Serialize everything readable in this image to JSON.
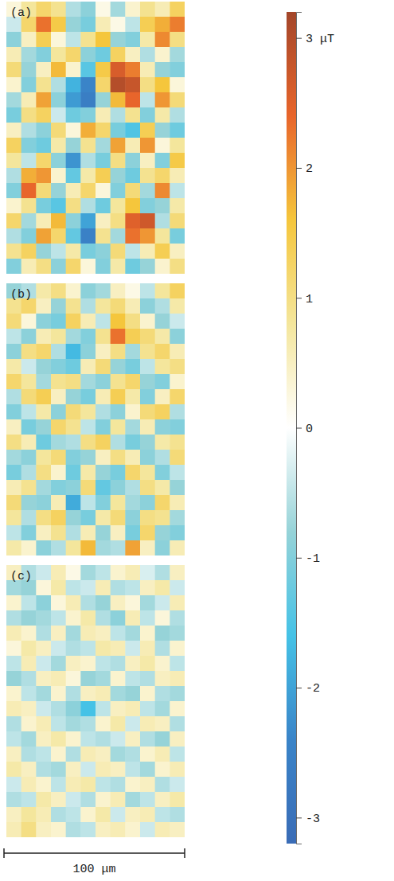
{
  "chart_data": {
    "type": "heatmap",
    "tick_labels": false,
    "panels": [
      {
        "label": "(a)",
        "cells": [
          [
            0.3,
            0.8,
            1.2,
            0.9,
            -0.6,
            -0.9,
            0.2,
            -0.7,
            0.4,
            0.9,
            0.6,
            1.3
          ],
          [
            -0.4,
            1.2,
            2.3,
            1.5,
            -0.8,
            -1.1,
            0.6,
            0.2,
            -0.5,
            1.4,
            1.8,
            2.2
          ],
          [
            -0.9,
            0.5,
            1.4,
            0.3,
            -0.5,
            0.9,
            1.6,
            -0.8,
            -1.0,
            0.7,
            2.1,
            1.0
          ],
          [
            0.6,
            -0.7,
            -1.0,
            0.8,
            1.2,
            -0.9,
            -1.2,
            1.3,
            0.5,
            -0.6,
            0.4,
            -0.7
          ],
          [
            1.1,
            -0.8,
            0.5,
            1.7,
            0.4,
            -1.4,
            1.5,
            2.6,
            2.2,
            0.6,
            -0.8,
            -1.0
          ],
          [
            0.4,
            -1.0,
            0.9,
            -0.6,
            -1.8,
            -2.4,
            1.2,
            3.0,
            2.8,
            1.0,
            1.6,
            0.3
          ],
          [
            -0.7,
            0.6,
            1.9,
            -0.9,
            -2.1,
            -2.6,
            -0.8,
            1.7,
            2.4,
            -0.5,
            2.0,
            1.1
          ],
          [
            -1.1,
            1.0,
            1.3,
            -0.4,
            -1.2,
            -1.0,
            0.6,
            -0.6,
            0.9,
            -1.0,
            0.7,
            -0.6
          ],
          [
            0.5,
            -0.6,
            -0.9,
            1.1,
            0.3,
            1.8,
            1.2,
            -1.1,
            -1.5,
            1.4,
            -0.8,
            -1.2
          ],
          [
            1.3,
            -1.0,
            -1.2,
            0.7,
            -0.8,
            0.9,
            -0.7,
            1.9,
            0.6,
            2.0,
            0.3,
            0.8
          ],
          [
            0.8,
            -0.5,
            1.2,
            -0.9,
            -2.2,
            -0.6,
            -1.1,
            1.0,
            -0.9,
            0.5,
            -1.0,
            1.5
          ],
          [
            -0.6,
            1.8,
            2.0,
            0.4,
            -1.3,
            0.7,
            1.4,
            -0.8,
            -1.2,
            0.9,
            1.2,
            0.6
          ],
          [
            -1.0,
            2.4,
            1.1,
            -0.8,
            0.6,
            1.2,
            0.3,
            -1.0,
            1.1,
            -0.7,
            2.1,
            -0.5
          ],
          [
            0.4,
            0.9,
            -1.1,
            -1.4,
            1.0,
            -0.6,
            -1.2,
            0.8,
            1.6,
            -1.0,
            -0.8,
            0.7
          ],
          [
            1.2,
            -0.7,
            0.6,
            1.7,
            -0.9,
            -2.0,
            0.5,
            1.0,
            2.5,
            2.7,
            -0.6,
            1.1
          ],
          [
            -0.6,
            -1.0,
            1.9,
            1.2,
            -1.3,
            -2.5,
            0.9,
            -0.7,
            2.3,
            2.0,
            0.8,
            -1.1
          ],
          [
            0.9,
            1.3,
            -0.8,
            -0.5,
            0.7,
            -1.1,
            -0.9,
            1.1,
            -0.5,
            0.6,
            1.4,
            0.5
          ],
          [
            -1.0,
            0.6,
            1.0,
            -0.9,
            1.2,
            0.3,
            -1.0,
            0.7,
            -1.2,
            -0.8,
            0.4,
            1.0
          ]
        ]
      },
      {
        "label": "(b)",
        "cells": [
          [
            -0.8,
            -0.6,
            0.7,
            1.0,
            0.4,
            -0.9,
            -0.7,
            0.5,
            0.2,
            -0.5,
            0.8,
            1.3
          ],
          [
            0.9,
            1.2,
            0.5,
            -0.8,
            0.9,
            -0.6,
            0.8,
            1.1,
            0.6,
            -0.9,
            -0.6,
            0.7
          ],
          [
            1.1,
            0.3,
            -0.9,
            -1.1,
            1.3,
            0.6,
            -0.5,
            1.6,
            1.0,
            0.4,
            -0.8,
            -0.4
          ],
          [
            -0.5,
            -0.9,
            0.6,
            0.8,
            -0.7,
            -1.0,
            0.9,
            2.3,
            1.4,
            1.1,
            0.7,
            -0.9
          ],
          [
            -0.9,
            1.0,
            1.2,
            -0.6,
            -1.7,
            -0.9,
            0.5,
            1.0,
            -0.7,
            0.9,
            1.2,
            0.6
          ],
          [
            0.7,
            -0.4,
            -0.8,
            -1.0,
            -1.2,
            0.6,
            1.1,
            -0.8,
            -1.1,
            -0.5,
            0.8,
            1.0
          ],
          [
            1.2,
            0.8,
            -0.7,
            0.9,
            1.0,
            -0.7,
            -0.9,
            0.9,
            1.2,
            -0.8,
            -1.0,
            0.4
          ],
          [
            -0.6,
            1.1,
            1.4,
            0.5,
            -0.8,
            -1.1,
            0.6,
            1.4,
            0.7,
            -1.0,
            0.5,
            1.2
          ],
          [
            -1.0,
            -0.5,
            0.7,
            -0.9,
            1.1,
            0.8,
            -0.6,
            -0.9,
            0.4,
            1.1,
            1.3,
            -0.6
          ],
          [
            0.5,
            -1.1,
            -0.8,
            1.2,
            0.9,
            -0.5,
            -1.0,
            0.8,
            -0.7,
            0.6,
            -0.9,
            -1.0
          ],
          [
            1.0,
            0.6,
            -1.2,
            -0.7,
            -0.6,
            1.0,
            1.3,
            -0.6,
            -1.1,
            -0.8,
            0.7,
            0.9
          ],
          [
            -0.7,
            -0.9,
            0.8,
            1.1,
            -1.0,
            -0.8,
            0.5,
            1.0,
            0.6,
            -0.9,
            -0.6,
            1.1
          ],
          [
            -1.1,
            -0.6,
            1.0,
            0.4,
            -1.2,
            0.7,
            -0.8,
            -1.1,
            1.2,
            0.8,
            -1.0,
            -0.5
          ],
          [
            0.6,
            0.9,
            -0.7,
            -1.0,
            -0.9,
            1.1,
            -1.3,
            -0.9,
            -0.6,
            1.0,
            0.7,
            -0.8
          ],
          [
            1.1,
            -0.8,
            -0.9,
            0.6,
            -1.9,
            -0.5,
            -1.0,
            0.8,
            -0.7,
            -0.9,
            1.2,
            0.6
          ],
          [
            0.8,
            -0.6,
            1.0,
            1.3,
            -0.8,
            -1.1,
            0.7,
            1.1,
            -0.9,
            1.0,
            0.9,
            -0.7
          ],
          [
            -0.5,
            -1.0,
            0.5,
            0.9,
            -0.6,
            0.6,
            -0.8,
            0.5,
            -1.1,
            1.2,
            -0.8,
            -1.0
          ],
          [
            0.7,
            0.4,
            -0.9,
            -0.6,
            0.8,
            1.7,
            -0.7,
            -0.6,
            1.9,
            0.5,
            -0.9,
            0.6
          ]
        ]
      },
      {
        "label": "(c)",
        "cells": [
          [
            0.5,
            -0.6,
            -0.4,
            0.6,
            0.2,
            -0.7,
            -0.5,
            0.4,
            0.6,
            -0.3,
            -0.6,
            0.5
          ],
          [
            -0.7,
            -0.8,
            0.3,
            0.7,
            -0.5,
            -0.4,
            0.6,
            -0.6,
            -0.5,
            0.5,
            0.7,
            -0.4
          ],
          [
            0.4,
            -0.5,
            -0.9,
            0.3,
            0.6,
            -0.6,
            -0.8,
            0.5,
            0.3,
            -0.7,
            -0.4,
            0.6
          ],
          [
            -0.6,
            -0.8,
            -0.7,
            -0.5,
            0.4,
            0.7,
            -0.6,
            -0.9,
            0.6,
            -0.5,
            0.3,
            -0.6
          ],
          [
            0.6,
            0.4,
            -0.6,
            0.5,
            -0.7,
            0.6,
            0.5,
            -0.5,
            -0.7,
            0.4,
            -0.8,
            -0.7
          ],
          [
            0.3,
            0.7,
            0.5,
            -0.4,
            -0.6,
            -0.5,
            0.7,
            0.6,
            -0.4,
            0.6,
            -0.6,
            0.4
          ],
          [
            -0.5,
            0.6,
            -0.4,
            -0.7,
            0.5,
            0.4,
            -0.5,
            -0.6,
            0.5,
            0.7,
            0.4,
            -0.5
          ],
          [
            -0.8,
            -0.6,
            0.5,
            0.6,
            0.3,
            -0.8,
            -0.7,
            0.4,
            -0.5,
            -0.6,
            0.5,
            0.6
          ],
          [
            0.4,
            -0.5,
            -0.7,
            0.4,
            -0.6,
            0.5,
            0.6,
            -0.7,
            -0.8,
            0.4,
            -0.6,
            -0.7
          ],
          [
            0.6,
            0.5,
            -0.4,
            -0.6,
            -0.9,
            -1.6,
            -0.5,
            0.5,
            0.6,
            -0.5,
            -0.7,
            0.4
          ],
          [
            -0.6,
            0.4,
            0.6,
            -0.5,
            -0.7,
            -0.6,
            0.4,
            0.7,
            -0.4,
            0.6,
            0.5,
            -0.6
          ],
          [
            -0.5,
            -0.7,
            0.5,
            0.7,
            0.4,
            -0.5,
            -0.6,
            -0.4,
            0.5,
            -0.6,
            -0.8,
            0.5
          ],
          [
            0.5,
            -0.6,
            -0.5,
            0.4,
            -0.6,
            0.6,
            0.5,
            -0.7,
            -0.6,
            0.4,
            0.6,
            -0.5
          ],
          [
            0.7,
            0.5,
            -0.6,
            -0.7,
            0.5,
            -0.4,
            0.6,
            0.5,
            -0.5,
            -0.7,
            0.4,
            0.6
          ],
          [
            -0.4,
            0.6,
            0.4,
            -0.5,
            0.6,
            0.7,
            -0.5,
            -0.6,
            0.4,
            0.5,
            -0.6,
            -0.4
          ],
          [
            -0.6,
            -0.5,
            0.7,
            0.5,
            -0.4,
            -0.6,
            0.4,
            0.6,
            -0.7,
            -0.5,
            0.5,
            0.7
          ],
          [
            0.5,
            0.8,
            0.6,
            -0.6,
            -0.5,
            0.4,
            0.7,
            -0.4,
            0.5,
            0.6,
            -0.5,
            -0.6
          ],
          [
            0.6,
            1.0,
            0.5,
            0.4,
            -0.6,
            -0.5,
            0.5,
            0.6,
            0.4,
            -0.4,
            0.6,
            0.5
          ]
        ]
      }
    ],
    "colorbar": {
      "range": [
        -3.2,
        3.2
      ],
      "ticks": [
        {
          "value": 3,
          "label": "3 μT"
        },
        2,
        1,
        0,
        -1,
        -2,
        -3
      ],
      "colors": [
        "#3a6cb6",
        "#3a84c8",
        "#45c2e6",
        "#96d3d8",
        "#ffffff",
        "#f4e69c",
        "#f5c63c",
        "#e8652b",
        "#a3462a"
      ]
    },
    "scale_bar": {
      "label": "100 μm"
    }
  }
}
